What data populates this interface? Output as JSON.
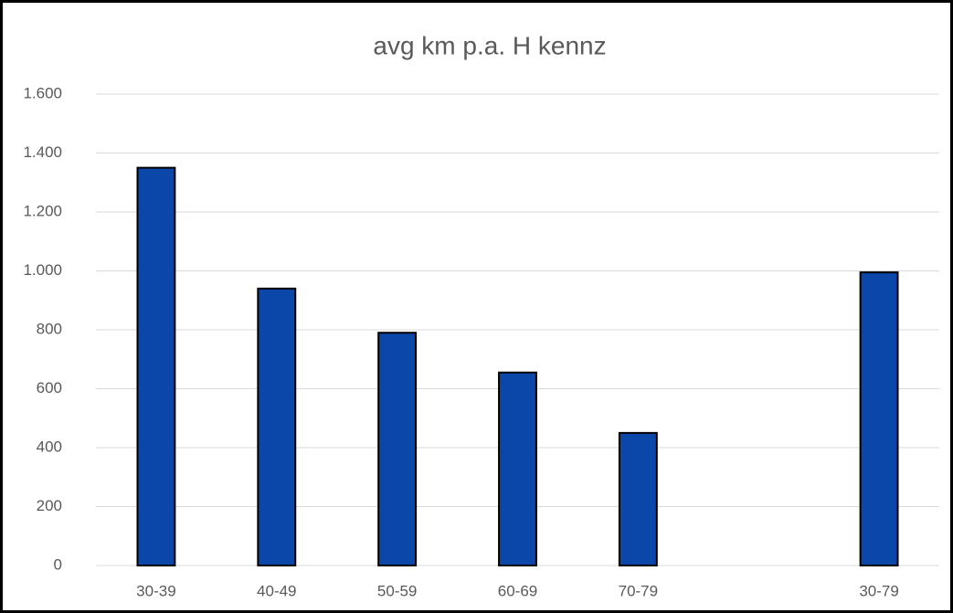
{
  "chart_data": {
    "type": "bar",
    "title": "avg km p.a. H kennz",
    "categories": [
      "30-39",
      "40-49",
      "50-59",
      "60-69",
      "70-79",
      null,
      "30-79"
    ],
    "values": [
      1350,
      940,
      790,
      655,
      450,
      null,
      995
    ],
    "color": "#0a47a8",
    "ylim": [
      0,
      1600
    ],
    "yticks": [
      0,
      200,
      400,
      600,
      800,
      {
        "value": 1000,
        "label": "1.000"
      },
      {
        "value": 1200,
        "label": "1.200"
      },
      {
        "value": 1400,
        "label": "1.400"
      },
      {
        "value": 1600,
        "label": "1.600"
      }
    ],
    "grid": true
  }
}
